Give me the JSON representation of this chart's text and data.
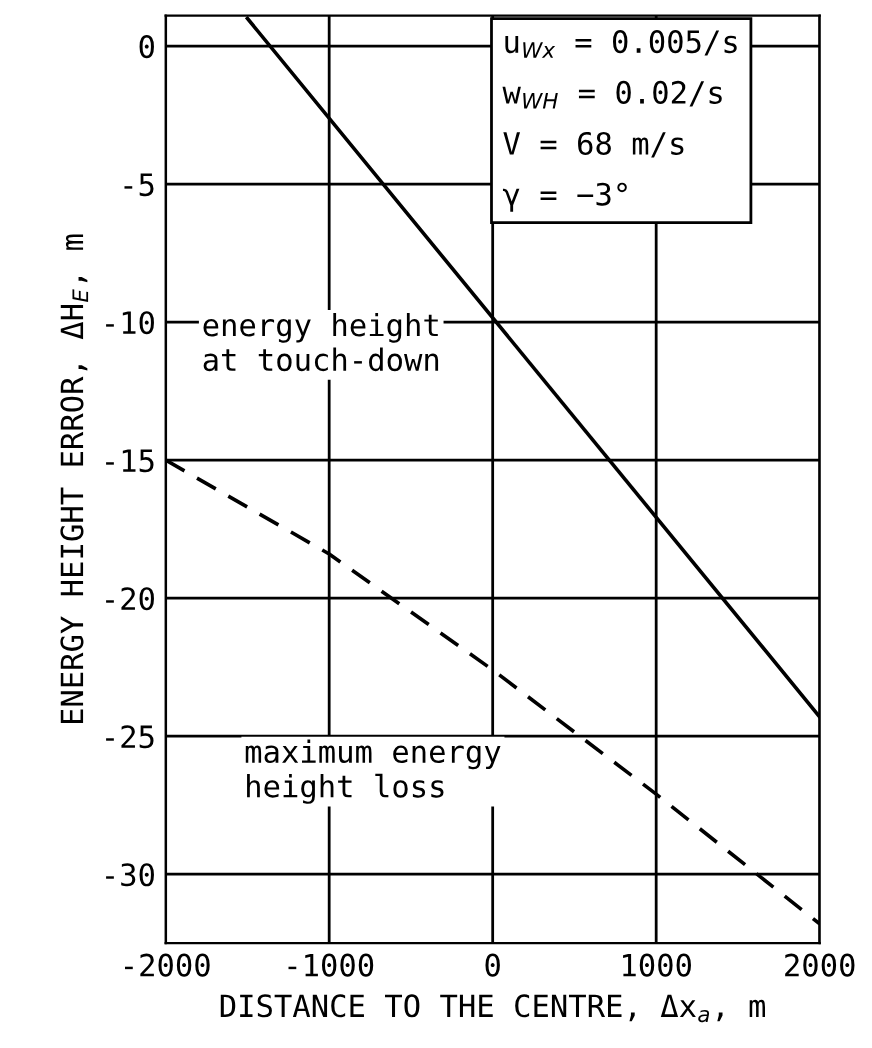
{
  "chart_data": {
    "type": "line",
    "xlabel": "DISTANCE TO THE CENTRE, Δx$_{a}$, m",
    "ylabel": "ENERGY HEIGHT ERROR, ΔH$_{E}$, m",
    "xlim": [
      -2000,
      2000
    ],
    "ylim": [
      -32.5,
      1.1
    ],
    "xticks": [
      {
        "value": -2000,
        "label": "-2000"
      },
      {
        "value": -1000,
        "label": "-1000"
      },
      0,
      1000,
      2000
    ],
    "yticks": [
      0,
      {
        "value": -5,
        "label": "-5"
      },
      {
        "value": -10,
        "label": "-10"
      },
      {
        "value": -15,
        "label": "-15"
      },
      {
        "value": -20,
        "label": "-20"
      },
      {
        "value": -25,
        "label": "-25"
      },
      {
        "value": -30,
        "label": "-30"
      }
    ],
    "grid": true,
    "marker": "none",
    "series": [
      {
        "color": "#000000",
        "line_style": "solid",
        "x": [
          -1500,
          2000
        ],
        "values": [
          1.0,
          -24.3
        ]
      },
      {
        "color": "#000000",
        "line_style": "dashed",
        "x": [
          -2000,
          -1000,
          0,
          1000,
          2000
        ],
        "values": [
          -15,
          -18.4,
          -22.6,
          -27.1,
          -31.8
        ]
      }
    ],
    "annotations": [
      {
        "text": "u$_{Wx}$ = 0.005/s\nw$_{WH}$ = 0.02/s\nV = 68 m/s\nγ = −3°"
      },
      "energy height\nat touch-down",
      "maximum energy\nheight loss"
    ]
  }
}
